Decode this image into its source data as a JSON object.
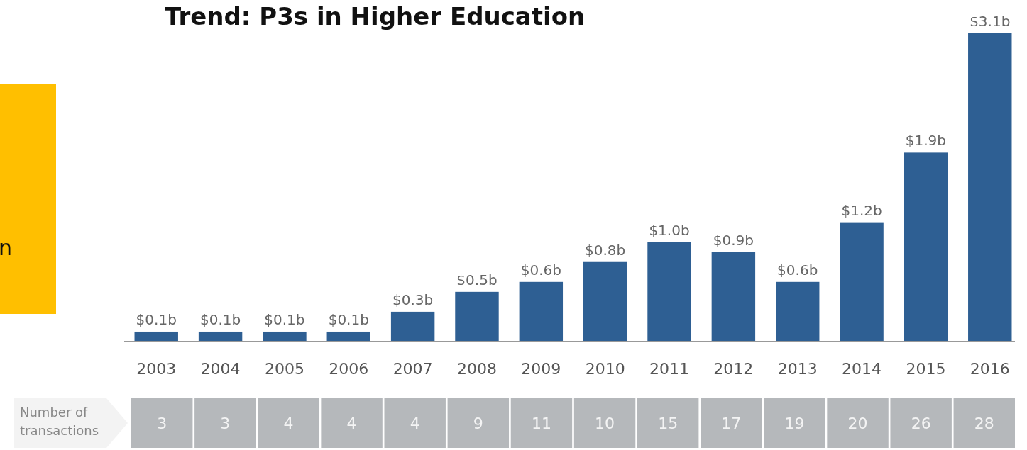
{
  "chart_data": [
    {
      "type": "bar",
      "title": "Trend: P3s in Higher Education",
      "categories": [
        "2003",
        "2004",
        "2005",
        "2006",
        "2007",
        "2008",
        "2009",
        "2010",
        "2011",
        "2012",
        "2013",
        "2014",
        "2015",
        "2016"
      ],
      "values": [
        0.1,
        0.1,
        0.1,
        0.1,
        0.3,
        0.5,
        0.6,
        0.8,
        1.0,
        0.9,
        0.6,
        1.2,
        1.9,
        3.1
      ],
      "value_labels": [
        "$0.1b",
        "$0.1b",
        "$0.1b",
        "$0.1b",
        "$0.3b",
        "$0.5b",
        "$0.6b",
        "$0.8b",
        "$1.0b",
        "$0.9b",
        "$0.6b",
        "$1.2b",
        "$1.9b",
        "$3.1b"
      ],
      "color": "#2e5f93",
      "annotations": [
        "n"
      ]
    },
    {
      "type": "other",
      "title": "Number of transactions",
      "categories": [
        null,
        null,
        null,
        null,
        null,
        null,
        null,
        null,
        null,
        null,
        null,
        null,
        null,
        null
      ],
      "values": [
        3,
        3,
        4,
        4,
        4,
        9,
        11,
        10,
        15,
        17,
        19,
        20,
        26,
        28
      ],
      "color": "#b5b8bb",
      "data_labels": true
    }
  ]
}
